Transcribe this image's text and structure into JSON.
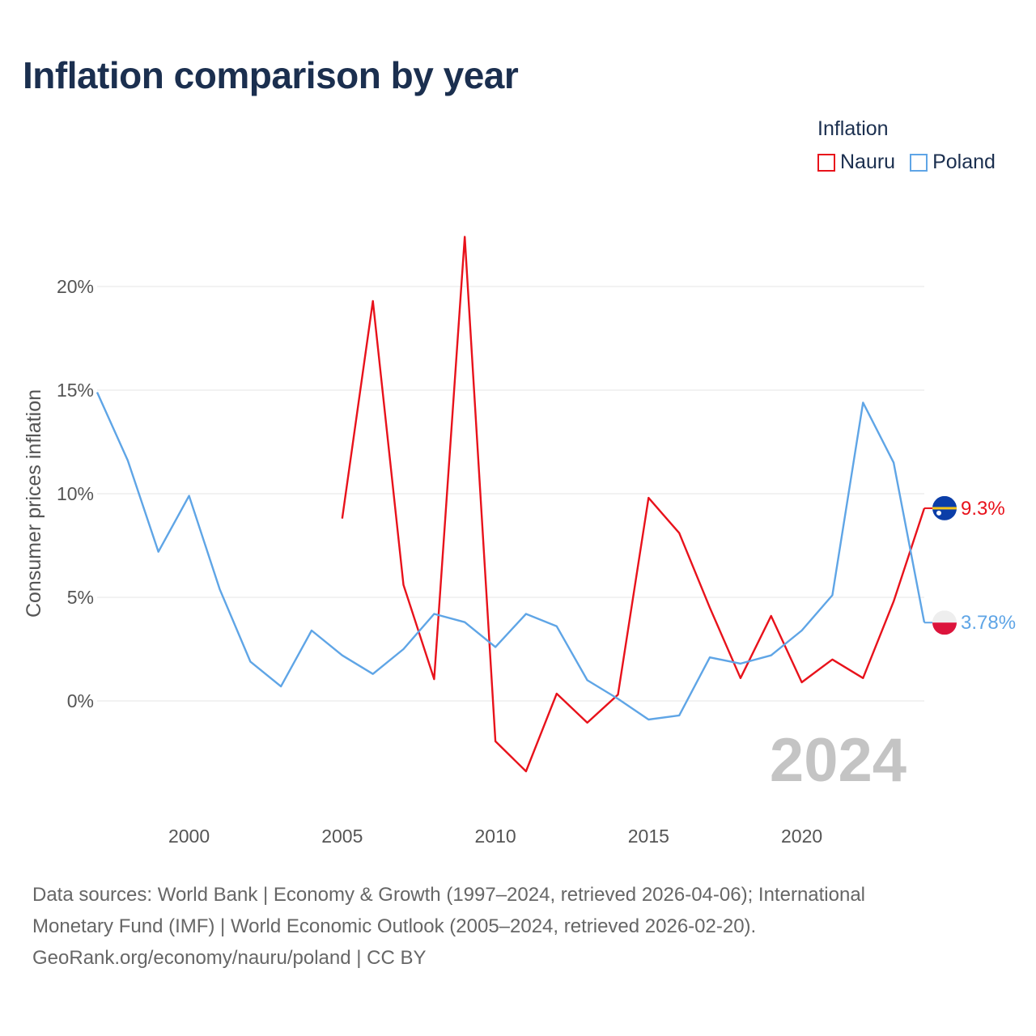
{
  "title": "Inflation comparison by year",
  "legend": {
    "title": "Inflation",
    "items": [
      {
        "label": "Nauru",
        "color": "#e8121b"
      },
      {
        "label": "Poland",
        "color": "#5fa5e6"
      }
    ]
  },
  "year_watermark": "2024",
  "footer": {
    "line1": "Data sources: World Bank | Economy & Growth (1997–2024, retrieved 2026-04-06); International",
    "line2": "Monetary Fund (IMF) | World Economic Outlook (2005–2024, retrieved 2026-02-20).",
    "line3": "GeoRank.org/economy/nauru/poland | CC BY"
  },
  "chart_data": {
    "type": "line",
    "title": "Inflation comparison by year",
    "xlabel": "",
    "ylabel": "Consumer prices inflation",
    "xlim": [
      1997,
      2024
    ],
    "ylim": [
      -5,
      23
    ],
    "x_ticks": [
      2000,
      2005,
      2010,
      2015,
      2020
    ],
    "y_ticks": [
      0,
      5,
      10,
      15,
      20
    ],
    "y_tick_labels": [
      "0%",
      "5%",
      "10%",
      "15%",
      "20%"
    ],
    "grid": true,
    "legend_position": "top-right",
    "series": [
      {
        "name": "Nauru",
        "color": "#e8121b",
        "end_label": "9.3%",
        "points": [
          [
            2005,
            8.8
          ],
          [
            2006,
            19.3
          ],
          [
            2007,
            5.6
          ],
          [
            2008,
            1.05
          ],
          [
            2009,
            22.4
          ],
          [
            2010,
            -1.95
          ],
          [
            2011,
            -3.4
          ],
          [
            2012,
            0.35
          ],
          [
            2013,
            -1.05
          ],
          [
            2014,
            0.3
          ],
          [
            2015,
            9.8
          ],
          [
            2016,
            8.1
          ],
          [
            2017,
            4.5
          ],
          [
            2018,
            1.1
          ],
          [
            2019,
            4.1
          ],
          [
            2020,
            0.9
          ],
          [
            2021,
            2.0
          ],
          [
            2022,
            1.1
          ],
          [
            2023,
            4.8
          ],
          [
            2024,
            9.3
          ]
        ]
      },
      {
        "name": "Poland",
        "color": "#5fa5e6",
        "end_label": "3.78%",
        "points": [
          [
            1997,
            14.9
          ],
          [
            1998,
            11.6
          ],
          [
            1999,
            7.2
          ],
          [
            2000,
            9.9
          ],
          [
            2001,
            5.4
          ],
          [
            2002,
            1.9
          ],
          [
            2003,
            0.7
          ],
          [
            2004,
            3.4
          ],
          [
            2005,
            2.2
          ],
          [
            2006,
            1.3
          ],
          [
            2007,
            2.5
          ],
          [
            2008,
            4.2
          ],
          [
            2009,
            3.8
          ],
          [
            2010,
            2.6
          ],
          [
            2011,
            4.2
          ],
          [
            2012,
            3.6
          ],
          [
            2013,
            1.0
          ],
          [
            2014,
            0.1
          ],
          [
            2015,
            -0.9
          ],
          [
            2016,
            -0.7
          ],
          [
            2017,
            2.1
          ],
          [
            2018,
            1.8
          ],
          [
            2019,
            2.2
          ],
          [
            2020,
            3.4
          ],
          [
            2021,
            5.1
          ],
          [
            2022,
            14.4
          ],
          [
            2023,
            11.5
          ],
          [
            2024,
            3.78
          ]
        ]
      }
    ]
  }
}
